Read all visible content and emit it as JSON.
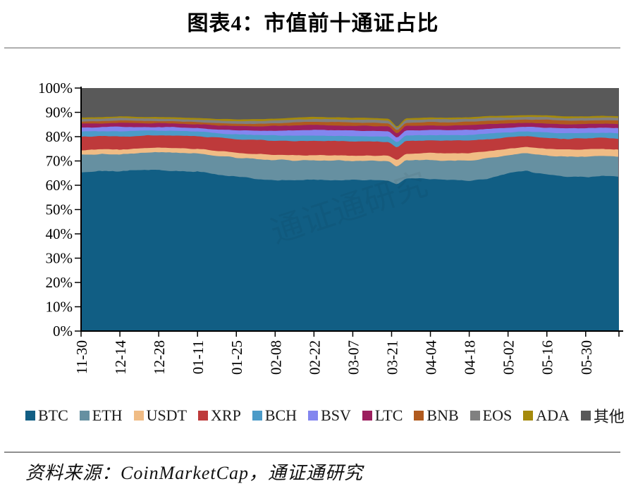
{
  "title": "图表4：市值前十通证占比",
  "source": "资料来源：CoinMarketCap，通证通研究",
  "colors": {
    "axis": "#000000",
    "top_rule": "#aeaeae",
    "bottom_rule": "#8f8f8f",
    "text": "#000000"
  },
  "chart_data": {
    "type": "area",
    "stacked": true,
    "normalized_percent": true,
    "title": "市值前十通证占比",
    "xlabel": "",
    "ylabel": "",
    "ylim": [
      0,
      100
    ],
    "grid": false,
    "legend_position": "bottom",
    "y_tick_labels": [
      "0%",
      "10%",
      "20%",
      "30%",
      "40%",
      "50%",
      "60%",
      "70%",
      "80%",
      "90%",
      "100%"
    ],
    "x_tick_labels": [
      "11-30",
      "12-14",
      "12-28",
      "01-11",
      "01-25",
      "02-08",
      "02-22",
      "03-07",
      "03-21",
      "04-04",
      "04-18",
      "05-02",
      "05-16",
      "05-30"
    ],
    "x_tick_interval_days": 14,
    "x_total_days": 194,
    "x_days": [
      0,
      7,
      14,
      21,
      28,
      35,
      42,
      49,
      56,
      63,
      70,
      77,
      84,
      91,
      98,
      105,
      111,
      114,
      117,
      126,
      133,
      140,
      147,
      154,
      161,
      168,
      175,
      182,
      188,
      194
    ],
    "series": [
      {
        "key": "btc",
        "name": "BTC",
        "color": "#115e84",
        "values": [
          65.5,
          65.8,
          65.6,
          66.2,
          66.3,
          66.0,
          65.8,
          64.5,
          63.5,
          62.5,
          62.0,
          61.8,
          62.3,
          62.2,
          62.0,
          62.2,
          62.0,
          60.3,
          62.8,
          62.6,
          62.2,
          61.9,
          63.0,
          65.0,
          66.0,
          64.2,
          63.6,
          63.3,
          63.8,
          63.5
        ]
      },
      {
        "key": "eth",
        "name": "ETH",
        "color": "#6690a1",
        "values": [
          7.0,
          7.0,
          7.0,
          7.0,
          7.2,
          7.2,
          7.2,
          7.6,
          7.9,
          8.3,
          8.5,
          8.4,
          8.0,
          8.0,
          8.0,
          7.9,
          7.9,
          7.4,
          7.7,
          7.8,
          8.0,
          8.3,
          8.2,
          7.4,
          7.2,
          8.0,
          8.2,
          8.4,
          8.2,
          8.3
        ]
      },
      {
        "key": "usdt",
        "name": "USDT",
        "color": "#f0bc85",
        "values": [
          2.0,
          2.0,
          2.0,
          1.9,
          1.9,
          2.0,
          2.0,
          2.0,
          2.0,
          2.1,
          2.1,
          2.0,
          2.0,
          2.1,
          2.2,
          2.2,
          2.2,
          2.6,
          2.5,
          2.8,
          2.9,
          3.0,
          2.9,
          2.7,
          2.6,
          2.8,
          2.9,
          3.0,
          3.0,
          3.0
        ]
      },
      {
        "key": "xrp",
        "name": "XRP",
        "color": "#be3a3b",
        "values": [
          5.5,
          5.4,
          5.5,
          5.3,
          5.2,
          5.2,
          5.2,
          5.4,
          5.6,
          5.7,
          5.8,
          5.9,
          5.8,
          5.8,
          5.8,
          5.6,
          5.6,
          5.2,
          5.3,
          5.2,
          5.2,
          5.3,
          5.0,
          4.6,
          4.4,
          4.5,
          4.4,
          4.5,
          4.4,
          4.4
        ]
      },
      {
        "key": "bch",
        "name": "BCH",
        "color": "#4c9bc8",
        "values": [
          2.2,
          2.1,
          2.1,
          2.0,
          1.9,
          1.9,
          1.9,
          1.9,
          1.9,
          2.0,
          2.1,
          2.3,
          2.4,
          2.3,
          2.3,
          2.3,
          2.3,
          2.0,
          2.2,
          2.2,
          2.2,
          2.2,
          2.2,
          2.1,
          2.0,
          2.2,
          2.2,
          2.2,
          2.2,
          2.2
        ]
      },
      {
        "key": "bsv",
        "name": "BSV",
        "color": "#8386ef",
        "values": [
          1.6,
          1.6,
          2.0,
          1.6,
          1.5,
          1.5,
          1.5,
          1.6,
          1.7,
          1.8,
          2.0,
          2.2,
          2.4,
          2.3,
          2.2,
          2.2,
          2.2,
          1.8,
          2.0,
          2.1,
          2.1,
          2.1,
          2.0,
          1.9,
          1.8,
          2.0,
          2.0,
          2.0,
          2.0,
          2.0
        ]
      },
      {
        "key": "ltc",
        "name": "LTC",
        "color": "#9c1f5e",
        "values": [
          1.5,
          1.5,
          1.6,
          1.5,
          1.5,
          1.5,
          1.5,
          1.6,
          1.7,
          1.8,
          1.9,
          2.0,
          2.0,
          2.0,
          2.0,
          2.0,
          2.0,
          1.8,
          1.9,
          1.9,
          1.9,
          1.9,
          1.9,
          1.8,
          1.7,
          1.8,
          1.8,
          1.8,
          1.8,
          1.8
        ]
      },
      {
        "key": "bnb",
        "name": "BNB",
        "color": "#b05a1e",
        "values": [
          0.9,
          0.9,
          0.9,
          0.9,
          0.9,
          0.9,
          0.9,
          1.0,
          1.0,
          1.1,
          1.1,
          1.2,
          1.2,
          1.3,
          1.3,
          1.3,
          1.3,
          1.2,
          1.3,
          1.4,
          1.4,
          1.4,
          1.4,
          1.3,
          1.3,
          1.4,
          1.4,
          1.4,
          1.4,
          1.4
        ]
      },
      {
        "key": "eos",
        "name": "EOS",
        "color": "#808080",
        "values": [
          1.0,
          1.0,
          1.0,
          1.0,
          1.0,
          1.0,
          1.0,
          1.0,
          1.1,
          1.1,
          1.1,
          1.2,
          1.2,
          1.2,
          1.2,
          1.2,
          1.2,
          1.0,
          1.1,
          1.2,
          1.2,
          1.2,
          1.2,
          1.1,
          1.1,
          1.1,
          1.1,
          1.1,
          1.1,
          1.1
        ]
      },
      {
        "key": "ada",
        "name": "ADA",
        "color": "#a58a0c",
        "values": [
          0.7,
          0.7,
          0.7,
          0.7,
          0.7,
          0.7,
          0.7,
          0.7,
          0.7,
          0.8,
          0.8,
          0.8,
          0.8,
          0.8,
          0.8,
          0.8,
          0.8,
          0.6,
          0.7,
          0.7,
          0.7,
          0.7,
          0.7,
          0.7,
          0.7,
          0.7,
          0.7,
          0.7,
          0.7,
          0.7
        ]
      },
      {
        "key": "others",
        "name": "其他",
        "color": "#595959",
        "values": [
          12.1,
          12.0,
          11.6,
          11.9,
          11.9,
          12.1,
          12.3,
          12.7,
          12.9,
          12.8,
          12.6,
          12.2,
          11.9,
          12.0,
          12.2,
          12.3,
          12.5,
          16.1,
          12.5,
          12.1,
          12.2,
          12.0,
          11.5,
          11.4,
          11.2,
          11.3,
          11.7,
          11.6,
          11.4,
          11.6
        ]
      }
    ],
    "watermark": "通证通研究"
  }
}
